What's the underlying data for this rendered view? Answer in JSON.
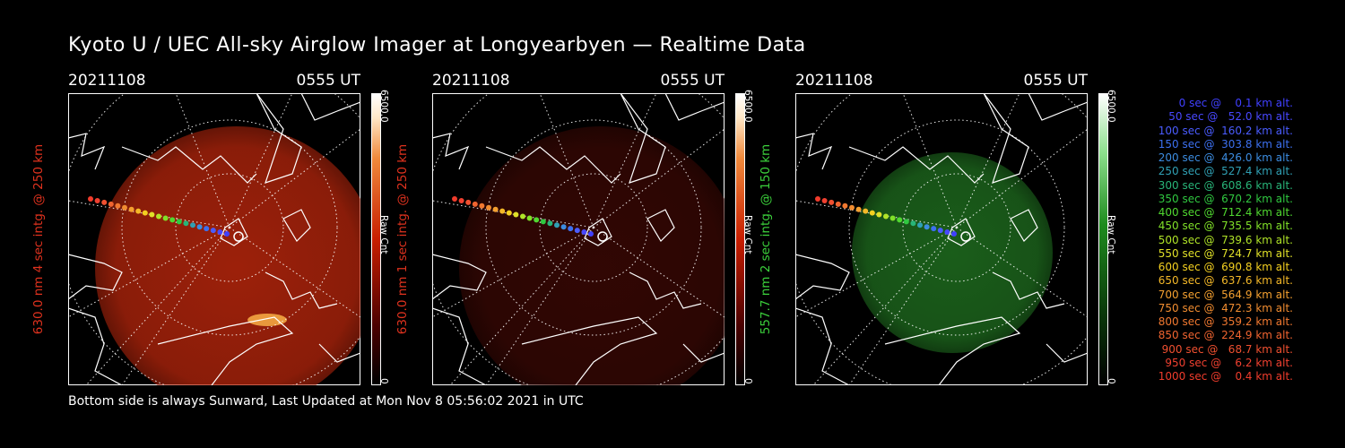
{
  "title": "Kyoto U / UEC All-sky Airglow Imager at Longyearbyen — Realtime Data",
  "footer": "Bottom side is always Sunward, Last Updated at Mon Nov  8 05:56:02 2021 in UTC",
  "panels": [
    {
      "date": "20211108",
      "time": "0555 UT",
      "label": "630.0 nm 4 sec intg. @ 250 km",
      "label_color": "#e0321e",
      "cb_max": "6500.0",
      "cb_unit": "Raw Cnt",
      "cb_min": "0",
      "colormap": "red",
      "glow_color": "#b8260c"
    },
    {
      "date": "20211108",
      "time": "0555 UT",
      "label": "630.0 nm 1 sec intg. @ 250 km",
      "label_color": "#e0321e",
      "cb_max": "6500.0",
      "cb_unit": "Raw Cnt",
      "cb_min": "0",
      "colormap": "red",
      "glow_color": "#3a0804"
    },
    {
      "date": "20211108",
      "time": "0555 UT",
      "label": "557.7 nm 2 sec intg. @ 150 km",
      "label_color": "#3cd23c",
      "cb_max": "6500.0",
      "cb_unit": "Raw Cnt",
      "cb_min": "0",
      "colormap": "green",
      "glow_color": "#1f6e1f"
    }
  ],
  "legend": [
    {
      "text": "   0 sec @    0.1 km alt.",
      "color": "#4040ff"
    },
    {
      "text": "  50 sec @   52.0 km alt.",
      "color": "#4848ff"
    },
    {
      "text": " 100 sec @  160.2 km alt.",
      "color": "#4a5cff"
    },
    {
      "text": " 150 sec @  303.8 km alt.",
      "color": "#3c70f0"
    },
    {
      "text": " 200 sec @  426.0 km alt.",
      "color": "#3c8ce0"
    },
    {
      "text": " 250 sec @  527.4 km alt.",
      "color": "#30a0b4"
    },
    {
      "text": " 300 sec @  608.6 km alt.",
      "color": "#28b478"
    },
    {
      "text": " 350 sec @  670.2 km alt.",
      "color": "#30c840"
    },
    {
      "text": " 400 sec @  712.4 km alt.",
      "color": "#50d830"
    },
    {
      "text": " 450 sec @  735.5 km alt.",
      "color": "#80e028"
    },
    {
      "text": " 500 sec @  739.6 km alt.",
      "color": "#b0e428"
    },
    {
      "text": " 550 sec @  724.7 km alt.",
      "color": "#e0e028"
    },
    {
      "text": " 600 sec @  690.8 km alt.",
      "color": "#f4d020"
    },
    {
      "text": " 650 sec @  637.6 km alt.",
      "color": "#f4b828"
    },
    {
      "text": " 700 sec @  564.9 km alt.",
      "color": "#f4a030"
    },
    {
      "text": " 750 sec @  472.3 km alt.",
      "color": "#f08c30"
    },
    {
      "text": " 800 sec @  359.2 km alt.",
      "color": "#f07830"
    },
    {
      "text": " 850 sec @  224.9 km alt.",
      "color": "#f06430"
    },
    {
      "text": " 900 sec @   68.7 km alt.",
      "color": "#f05030"
    },
    {
      "text": " 950 sec @    6.2 km alt.",
      "color": "#f04030"
    },
    {
      "text": "1000 sec @    0.4 km alt.",
      "color": "#f03c2c"
    }
  ]
}
